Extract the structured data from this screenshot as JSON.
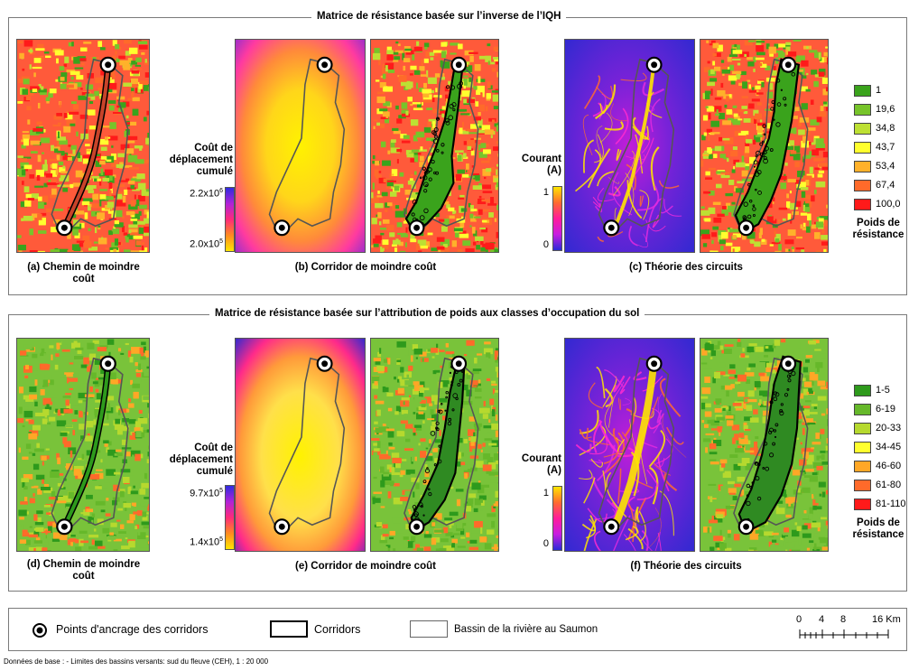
{
  "sections": [
    {
      "title": "Matrice de résistance basée sur l’inverse de l’IQH",
      "captions": {
        "a": "(a) Chemin de moindre coût",
        "b": "(b) Corridor de moindre coût",
        "c": "(c) Théorie des circuits"
      },
      "cost_bar": {
        "title": "Coût de déplacement cumulé",
        "max_label": "2.2x10",
        "max_exp": "6",
        "min_label": "2.0x10",
        "min_exp": "5",
        "colors": [
          "#2f2be0",
          "#b022d8",
          "#ff2a7a",
          "#ff8a20",
          "#ffe600"
        ]
      },
      "current_bar": {
        "title": "Courant (A)",
        "max_label": "1",
        "min_label": "0",
        "colors": [
          "#ffe600",
          "#ff6a30",
          "#ff1c9a",
          "#c81de0",
          "#2a2ad8"
        ]
      },
      "legend": {
        "title": "Poids de résistance",
        "items": [
          {
            "label": "1",
            "color": "#3aa31c"
          },
          {
            "label": "19,6",
            "color": "#77c42a"
          },
          {
            "label": "34,8",
            "color": "#bde033"
          },
          {
            "label": "43,7",
            "color": "#ffff2e"
          },
          {
            "label": "53,4",
            "color": "#ffb12a"
          },
          {
            "label": "67,4",
            "color": "#ff6a2a"
          },
          {
            "label": "100,0",
            "color": "#ff1a1a"
          }
        ]
      }
    },
    {
      "title": "Matrice de résistance basée sur l’attribution de poids aux classes d’occupation du sol",
      "captions": {
        "a": "(d) Chemin de moindre coût",
        "b": "(e) Corridor de moindre coût",
        "c": "(f) Théorie des circuits"
      },
      "cost_bar": {
        "title": "Coût de déplacement cumulé",
        "max_label": "9.7x10",
        "max_exp": "5",
        "min_label": "1.4x10",
        "min_exp": "5",
        "colors": [
          "#2f2be0",
          "#b022d8",
          "#ff2a7a",
          "#ff8a20",
          "#ffe600"
        ]
      },
      "current_bar": {
        "title": "Courant (A)",
        "max_label": "1",
        "min_label": "0",
        "colors": [
          "#ffe600",
          "#ff6a30",
          "#ff1c9a",
          "#c81de0",
          "#2a2ad8"
        ]
      },
      "legend": {
        "title": "Poids de résistance",
        "items": [
          {
            "label": "1-5",
            "color": "#2e9a1c"
          },
          {
            "label": "6-19",
            "color": "#66b82a"
          },
          {
            "label": "20-33",
            "color": "#b6d92e"
          },
          {
            "label": "34-45",
            "color": "#ffff2e"
          },
          {
            "label": "46-60",
            "color": "#ffa726"
          },
          {
            "label": "61-80",
            "color": "#ff6a2a"
          },
          {
            "label": "81-110",
            "color": "#ff1a1a"
          }
        ]
      }
    }
  ],
  "bottom_legend": {
    "anchor_label": "Points d'ancrage des corridors",
    "corridor_label": "Corridors",
    "basin_label": "Bassin de la rivière au Saumon",
    "scale_ticks": [
      "0",
      "4",
      "8",
      "16 Km"
    ]
  },
  "footnote": "Données de base : - Limites des bassins versants: sud du fleuve (CEH), 1 : 20 000"
}
